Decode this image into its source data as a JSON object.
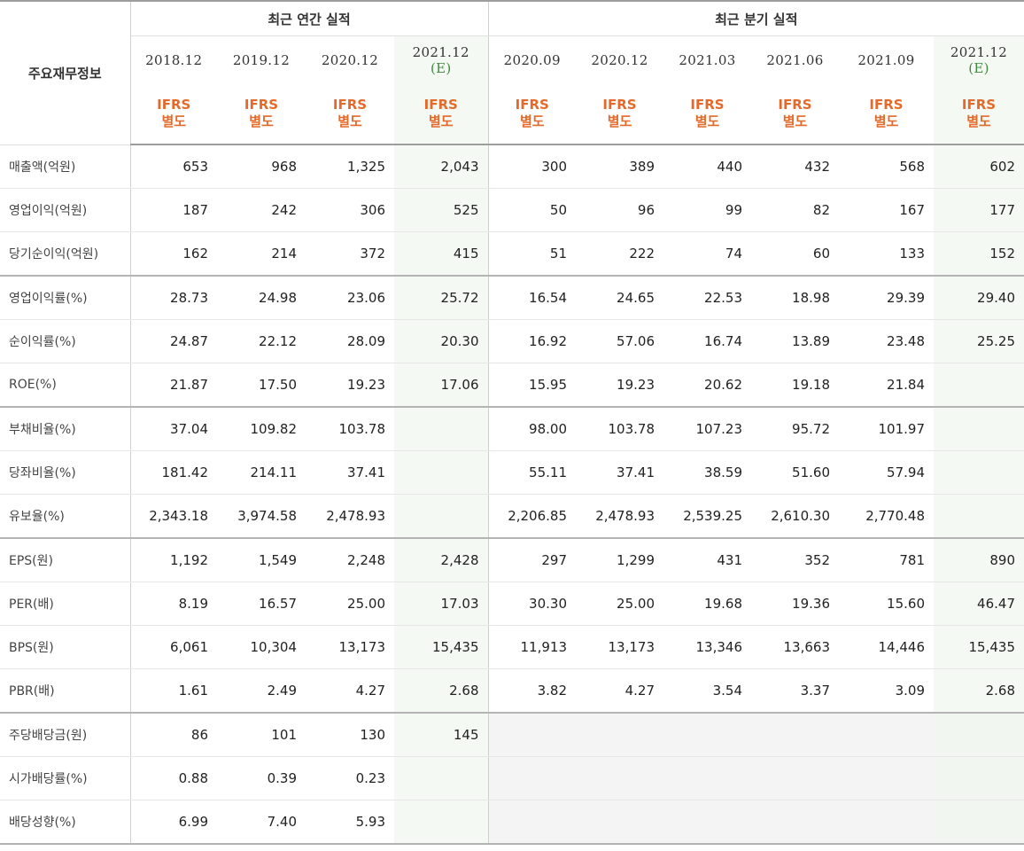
{
  "header": {
    "label": "주요재무정보",
    "annual_title": "최근 연간 실적",
    "quarter_title": "최근 분기 실적",
    "periods": [
      {
        "date": "2018.12",
        "est": "",
        "std1": "IFRS",
        "std2": "별도"
      },
      {
        "date": "2019.12",
        "est": "",
        "std1": "IFRS",
        "std2": "별도"
      },
      {
        "date": "2020.12",
        "est": "",
        "std1": "IFRS",
        "std2": "별도"
      },
      {
        "date": "2021.12",
        "est": "(E)",
        "std1": "IFRS",
        "std2": "별도"
      },
      {
        "date": "2020.09",
        "est": "",
        "std1": "IFRS",
        "std2": "별도"
      },
      {
        "date": "2020.12",
        "est": "",
        "std1": "IFRS",
        "std2": "별도"
      },
      {
        "date": "2021.03",
        "est": "",
        "std1": "IFRS",
        "std2": "별도"
      },
      {
        "date": "2021.06",
        "est": "",
        "std1": "IFRS",
        "std2": "별도"
      },
      {
        "date": "2021.09",
        "est": "",
        "std1": "IFRS",
        "std2": "별도"
      },
      {
        "date": "2021.12",
        "est": "(E)",
        "std1": "IFRS",
        "std2": "별도"
      }
    ]
  },
  "rows": [
    {
      "label": "매출액(억원)",
      "values": [
        "653",
        "968",
        "1,325",
        "2,043",
        "300",
        "389",
        "440",
        "432",
        "568",
        "602"
      ]
    },
    {
      "label": "영업이익(억원)",
      "values": [
        "187",
        "242",
        "306",
        "525",
        "50",
        "96",
        "99",
        "82",
        "167",
        "177"
      ]
    },
    {
      "label": "당기순이익(억원)",
      "values": [
        "162",
        "214",
        "372",
        "415",
        "51",
        "222",
        "74",
        "60",
        "133",
        "152"
      ]
    },
    {
      "label": "영업이익률(%)",
      "values": [
        "28.73",
        "24.98",
        "23.06",
        "25.72",
        "16.54",
        "24.65",
        "22.53",
        "18.98",
        "29.39",
        "29.40"
      ]
    },
    {
      "label": "순이익률(%)",
      "values": [
        "24.87",
        "22.12",
        "28.09",
        "20.30",
        "16.92",
        "57.06",
        "16.74",
        "13.89",
        "23.48",
        "25.25"
      ]
    },
    {
      "label": "ROE(%)",
      "values": [
        "21.87",
        "17.50",
        "19.23",
        "17.06",
        "15.95",
        "19.23",
        "20.62",
        "19.18",
        "21.84",
        ""
      ]
    },
    {
      "label": "부채비율(%)",
      "values": [
        "37.04",
        "109.82",
        "103.78",
        "",
        "98.00",
        "103.78",
        "107.23",
        "95.72",
        "101.97",
        ""
      ]
    },
    {
      "label": "당좌비율(%)",
      "values": [
        "181.42",
        "214.11",
        "37.41",
        "",
        "55.11",
        "37.41",
        "38.59",
        "51.60",
        "57.94",
        ""
      ]
    },
    {
      "label": "유보율(%)",
      "values": [
        "2,343.18",
        "3,974.58",
        "2,478.93",
        "",
        "2,206.85",
        "2,478.93",
        "2,539.25",
        "2,610.30",
        "2,770.48",
        ""
      ]
    },
    {
      "label": "EPS(원)",
      "values": [
        "1,192",
        "1,549",
        "2,248",
        "2,428",
        "297",
        "1,299",
        "431",
        "352",
        "781",
        "890"
      ]
    },
    {
      "label": "PER(배)",
      "values": [
        "8.19",
        "16.57",
        "25.00",
        "17.03",
        "30.30",
        "25.00",
        "19.68",
        "19.36",
        "15.60",
        "46.47"
      ]
    },
    {
      "label": "BPS(원)",
      "values": [
        "6,061",
        "10,304",
        "13,173",
        "15,435",
        "11,913",
        "13,173",
        "13,346",
        "13,663",
        "14,446",
        "15,435"
      ]
    },
    {
      "label": "PBR(배)",
      "values": [
        "1.61",
        "2.49",
        "4.27",
        "2.68",
        "3.82",
        "4.27",
        "3.54",
        "3.37",
        "3.09",
        "2.68"
      ]
    },
    {
      "label": "주당배당금(원)",
      "values": [
        "86",
        "101",
        "130",
        "145",
        "",
        "",
        "",
        "",
        "",
        ""
      ]
    },
    {
      "label": "시가배당률(%)",
      "values": [
        "0.88",
        "0.39",
        "0.23",
        "",
        "",
        "",
        "",
        "",
        "",
        ""
      ]
    },
    {
      "label": "배당성향(%)",
      "values": [
        "6.99",
        "7.40",
        "5.93",
        "",
        "",
        "",
        "",
        "",
        "",
        ""
      ]
    }
  ]
}
